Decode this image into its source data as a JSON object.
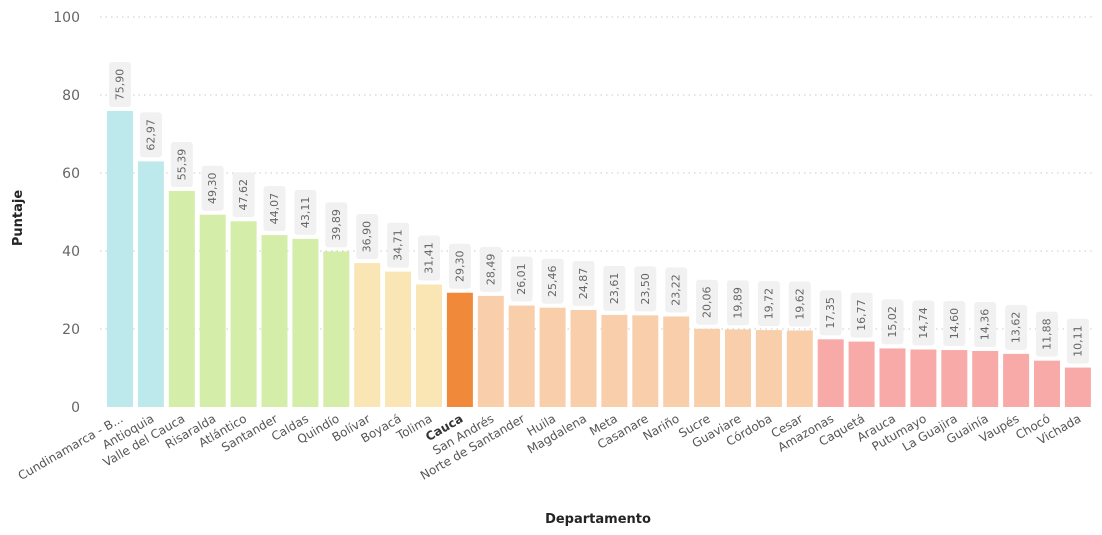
{
  "chart_data": {
    "type": "bar",
    "xlabel": "Departamento",
    "ylabel": "Puntaje",
    "ylim": [
      0,
      100
    ],
    "yticks": [
      0,
      20,
      40,
      60,
      80,
      100
    ],
    "grid": true,
    "highlight": "Cauca",
    "categories": [
      "Cundinamarca - B...",
      "Antioquia",
      "Valle del Cauca",
      "Risaralda",
      "Atlántico",
      "Santander",
      "Caldas",
      "Quindío",
      "Bolívar",
      "Boyacá",
      "Tolima",
      "Cauca",
      "San Andrés",
      "Norte de Santander",
      "Huila",
      "Magdalena",
      "Meta",
      "Casanare",
      "Nariño",
      "Sucre",
      "Guaviare",
      "Córdoba",
      "Cesar",
      "Amazonas",
      "Caquetá",
      "Arauca",
      "Putumayo",
      "La Guajira",
      "Guainía",
      "Vaupés",
      "Chocó",
      "Vichada"
    ],
    "values": [
      75.9,
      62.97,
      55.39,
      49.3,
      47.62,
      44.07,
      43.11,
      39.89,
      36.9,
      34.71,
      31.41,
      29.3,
      28.49,
      26.01,
      25.46,
      24.87,
      23.61,
      23.5,
      23.22,
      20.06,
      19.89,
      19.72,
      19.62,
      17.35,
      16.77,
      15.02,
      14.74,
      14.6,
      14.36,
      13.62,
      11.88,
      10.11
    ],
    "data_labels": [
      "75,90",
      "62,97",
      "55,39",
      "49,30",
      "47,62",
      "44,07",
      "43,11",
      "39,89",
      "36,90",
      "34,71",
      "31,41",
      "29,30",
      "28,49",
      "26,01",
      "25,46",
      "24,87",
      "23,61",
      "23,50",
      "23,22",
      "20,06",
      "19,89",
      "19,72",
      "19,62",
      "17,35",
      "16,77",
      "15,02",
      "14,74",
      "14,60",
      "14,36",
      "13,62",
      "11,88",
      "10,11"
    ],
    "colors": [
      "#bde9ec",
      "#bde9ec",
      "#d4eda8",
      "#d4eda8",
      "#d4eda8",
      "#d4eda8",
      "#d4eda8",
      "#d4eda8",
      "#fae6b4",
      "#fae6b4",
      "#fae6b4",
      "#f08a3a",
      "#f8cfaa",
      "#f8cfaa",
      "#f8cfaa",
      "#f8cfaa",
      "#f8cfaa",
      "#f8cfaa",
      "#f8cfaa",
      "#f8cfaa",
      "#f8cfaa",
      "#f8cfaa",
      "#f8cfaa",
      "#f7aaa8",
      "#f7aaa8",
      "#f7aaa8",
      "#f7aaa8",
      "#f7aaa8",
      "#f7aaa8",
      "#f7aaa8",
      "#f7aaa8",
      "#f7aaa8"
    ]
  }
}
